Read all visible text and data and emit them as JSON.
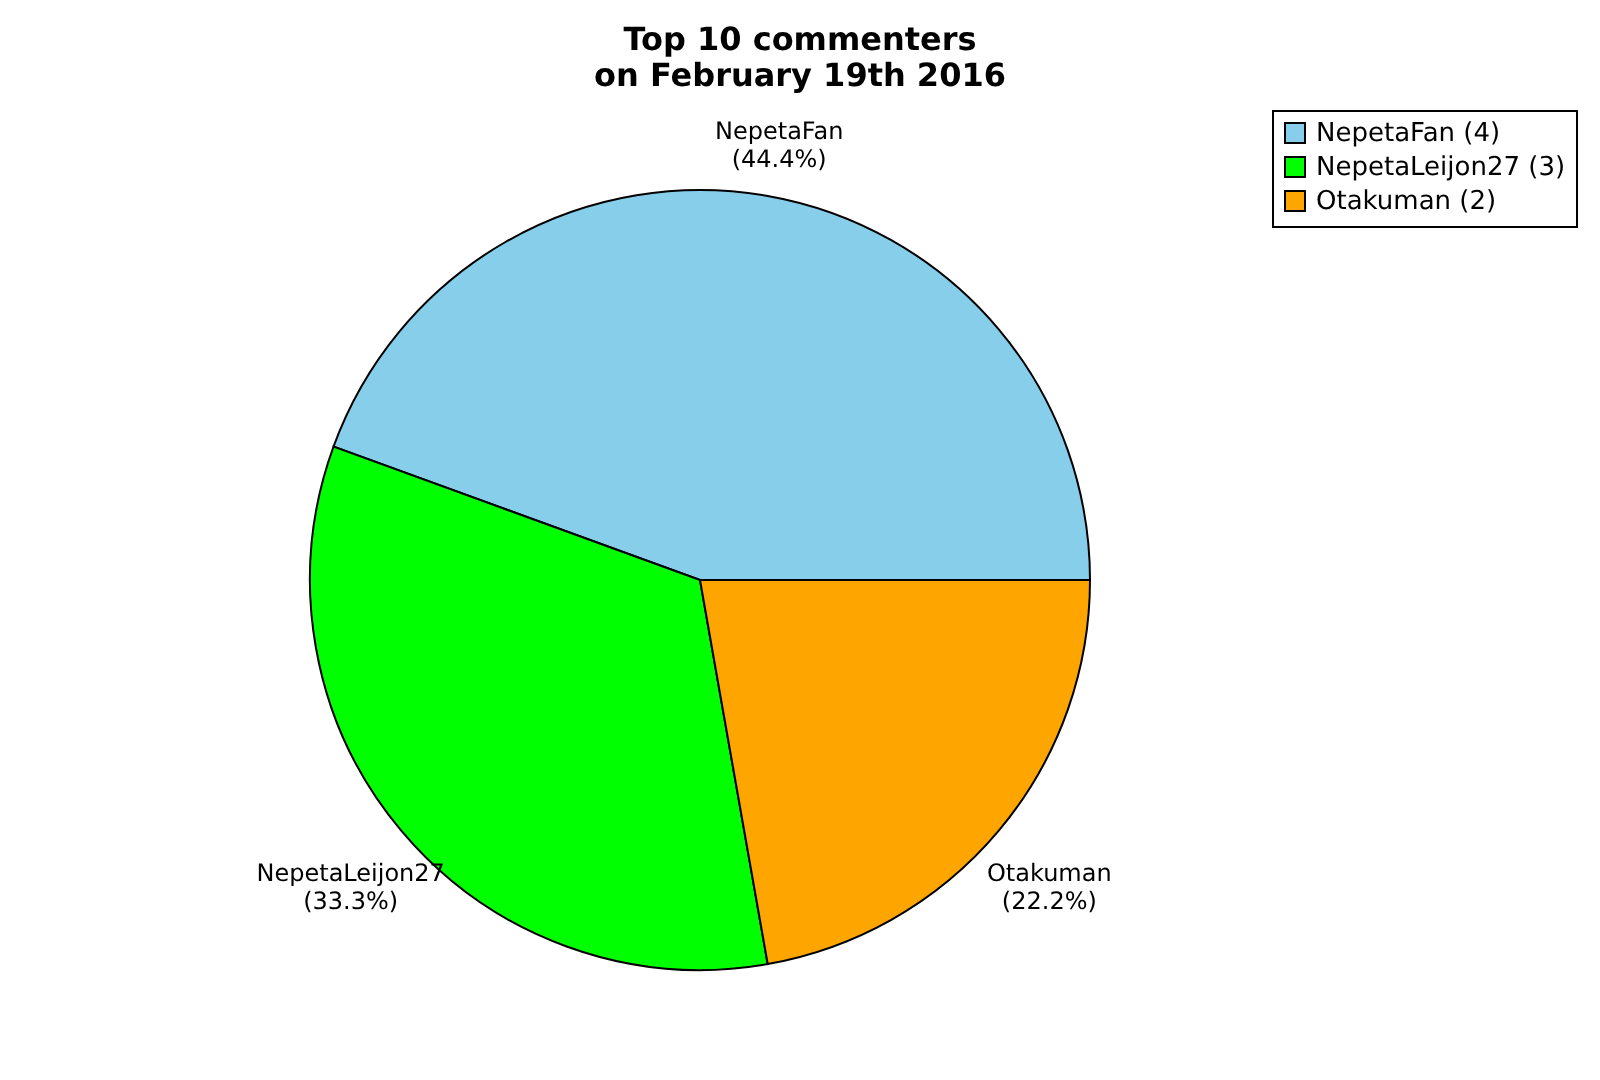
{
  "chart_data": {
    "type": "pie",
    "title": "Top 10 commenters\non February 19th 2016",
    "categories": [
      "NepetaFan (4)",
      "NepetaLeijon27 (3)",
      "Otakuman (2)"
    ],
    "values": [
      44.4,
      33.3,
      22.2
    ],
    "value_labels": [
      "NepetaFan\n(44.4%)",
      "NepetaLeijon27\n(33.3%)",
      "Otakuman\n(22.2%)"
    ],
    "colors": [
      "#87ceeb",
      "#00ff00",
      "#ffa500"
    ],
    "legend": "top right"
  }
}
